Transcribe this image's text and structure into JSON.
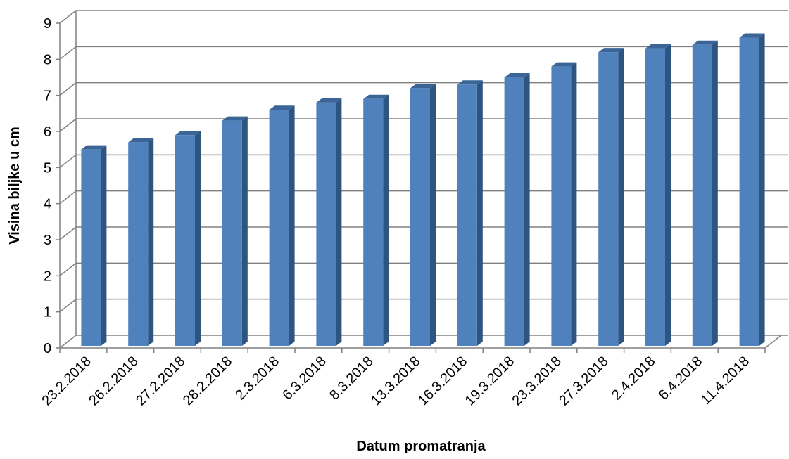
{
  "chart_data": {
    "type": "bar",
    "title": "",
    "xlabel": "Datum promatranja",
    "ylabel": "Visina biljke u cm",
    "ylim": [
      0,
      9
    ],
    "yticks": [
      0,
      1,
      2,
      3,
      4,
      5,
      6,
      7,
      8,
      9
    ],
    "grid": true,
    "categories": [
      "23.2.2018",
      "26.2.2018",
      "27.2.2018",
      "28.2.2018",
      "2.3.2018",
      "6.3.2018",
      "8.3.2018",
      "13.3.2018",
      "16.3.2018",
      "19.3.2018",
      "23.3.2018",
      "27.3.2018",
      "2.4.2018",
      "6.4.2018",
      "11.4.2018"
    ],
    "values": [
      5.5,
      5.7,
      5.9,
      6.3,
      6.6,
      6.8,
      6.9,
      7.2,
      7.3,
      7.5,
      7.8,
      8.2,
      8.3,
      8.4,
      8.6
    ],
    "colors": {
      "bar_front": "#4F81BD",
      "bar_side": "#2E5480",
      "bar_top": "#3A6596",
      "gridline": "#808080",
      "axis": "#808080"
    }
  }
}
